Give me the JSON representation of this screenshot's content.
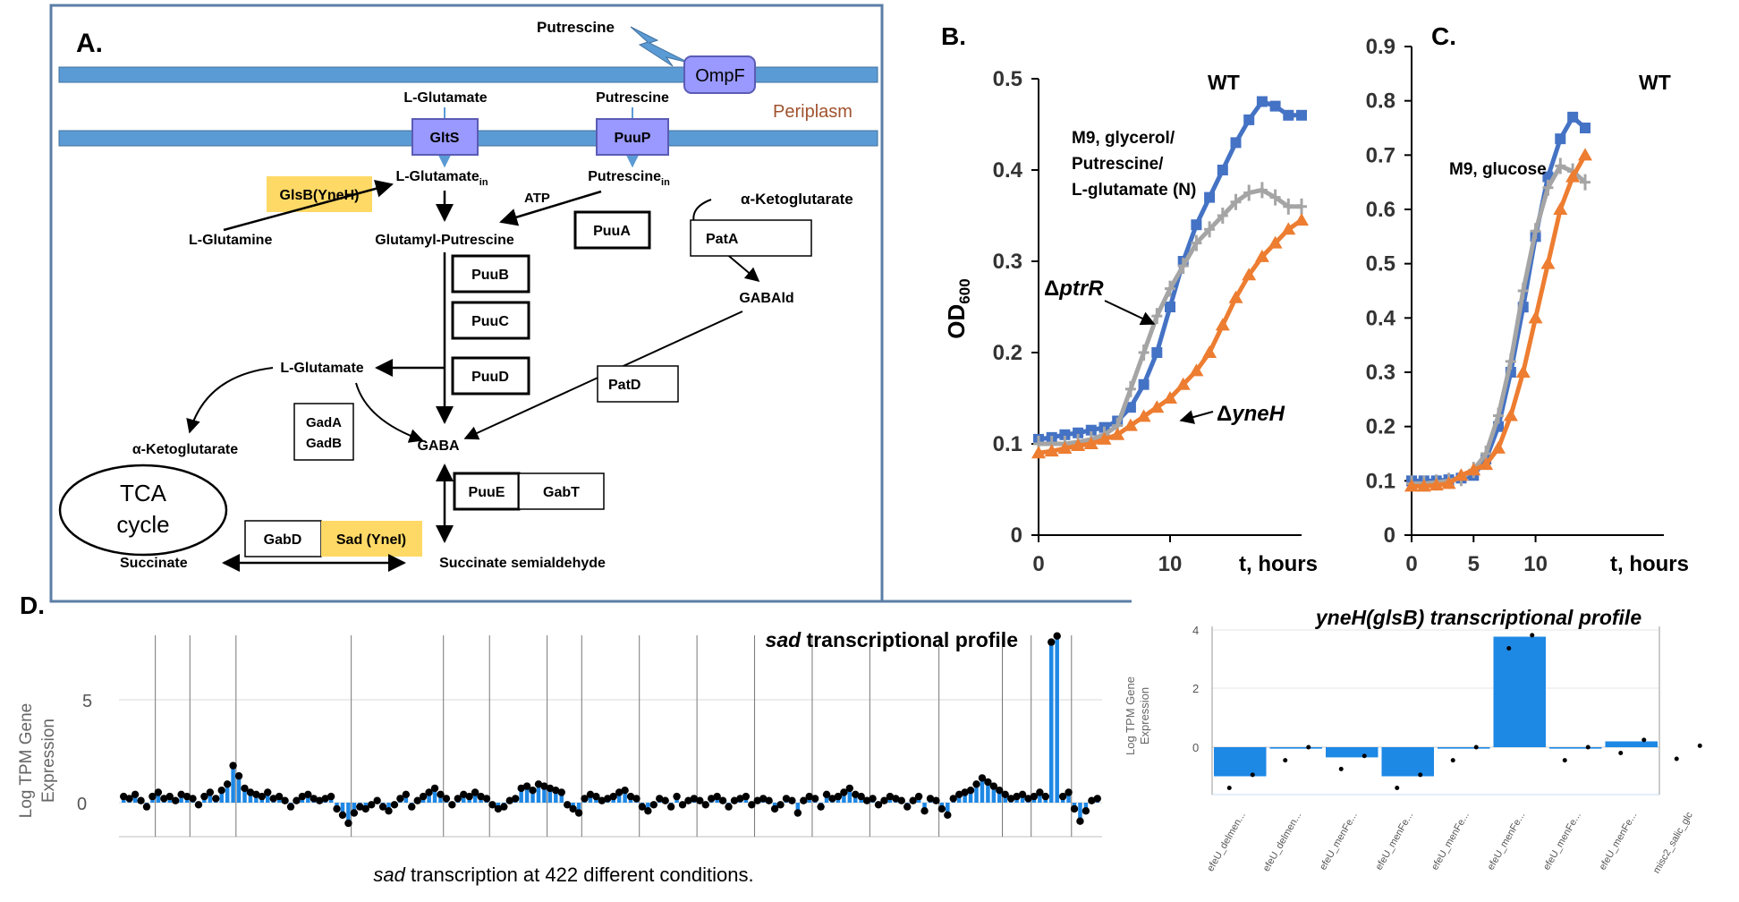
{
  "panel_a": {
    "label": "A.",
    "periplasm": "Periplasm",
    "putrescine_top": "Putrescine",
    "ompf": "OmpF",
    "l_glutamate_top": "L-Glutamate",
    "putrescine_mid": "Putrescine",
    "glts": "GltS",
    "puup": "PuuP",
    "l_glutamate_in": "L-Glutamate",
    "putrescine_in": "Putrescine",
    "in_sub": "in",
    "glsb": "GlsB(YneH)",
    "l_glutamine": "L-Glutamine",
    "atp": "ATP",
    "glutamyl_putrescine": "Glutamyl-Putrescine",
    "akg_right": "α-Ketoglutarate",
    "puua": "PuuA",
    "pata": "PatA",
    "puub": "PuuB",
    "puuc": "PuuC",
    "puud": "PuuD",
    "gabald": "GABAld",
    "l_glutamate_left": "L-Glutamate",
    "patd": "PatD",
    "gada": "GadA",
    "gadb": "GadB",
    "gaba": "GABA",
    "akg_left": "α-Ketoglutarate",
    "tca1": "TCA",
    "tca2": "cycle",
    "puue": "PuuE",
    "gabt": "GabT",
    "gabd": "GabD",
    "sad": "Sad (YneI)",
    "succinate": "Succinate",
    "ssa": "Succinate semialdehyde"
  },
  "panel_b": {
    "label": "B.",
    "ylabel": "OD",
    "ylabel_sub": "600",
    "wt": "WT",
    "cond1": "M9, glycerol/",
    "cond2": "Putrescine/",
    "cond3": "L-glutamate (N)",
    "ptrr": "ptrR",
    "yneh": "yneH",
    "delta": "Δ",
    "xlabel": "t, hours"
  },
  "panel_c": {
    "label": "C.",
    "wt": "WT",
    "cond": "M9, glucose",
    "xlabel": "t, hours"
  },
  "panel_d": {
    "label": "D.",
    "sad_title_gene": "sad",
    "sad_title_rest": " transcriptional profile",
    "ylabel1": "Log TPM Gene",
    "ylabel2": "Expression",
    "caption_gene": "sad",
    "caption_rest": " transcription at 422 different conditions.",
    "yneh_title": "yneH(glsB) transcriptional profile",
    "yneh_ylabel1": "Log TPM Gene",
    "yneh_ylabel2": "Expression"
  },
  "colors": {
    "wt": "#4472c4",
    "ptrr": "#a5a5a5",
    "yneh": "#ed7d31",
    "bar": "#1e88e5",
    "highlight": "#ffd966"
  },
  "chart_data": [
    {
      "id": "B",
      "type": "line",
      "title": "M9, glycerol/Putrescine/L-glutamate (N)",
      "xlabel": "t, hours",
      "ylabel": "OD600",
      "xlim": [
        0,
        20
      ],
      "ylim": [
        0,
        0.5
      ],
      "x_ticks": [
        0,
        10
      ],
      "y_ticks": [
        "0",
        "0.1",
        "0.2",
        "0.3",
        "0.4",
        "0.5"
      ],
      "series": [
        {
          "name": "WT",
          "x": [
            0,
            1,
            2,
            3,
            4,
            5,
            6,
            7,
            8,
            9,
            10,
            11,
            12,
            13,
            14,
            15,
            16,
            17,
            18,
            19,
            20
          ],
          "y": [
            0.105,
            0.107,
            0.11,
            0.112,
            0.115,
            0.118,
            0.125,
            0.14,
            0.165,
            0.2,
            0.25,
            0.3,
            0.34,
            0.37,
            0.4,
            0.43,
            0.455,
            0.475,
            0.47,
            0.46,
            0.46
          ]
        },
        {
          "name": "ΔptrR",
          "x": [
            0,
            1,
            2,
            3,
            4,
            5,
            6,
            7,
            8,
            9,
            10,
            11,
            12,
            13,
            14,
            15,
            16,
            17,
            18,
            19,
            20
          ],
          "y": [
            0.1,
            0.1,
            0.1,
            0.102,
            0.105,
            0.11,
            0.12,
            0.16,
            0.2,
            0.24,
            0.27,
            0.295,
            0.32,
            0.335,
            0.35,
            0.365,
            0.375,
            0.378,
            0.37,
            0.36,
            0.36
          ]
        },
        {
          "name": "ΔyneH",
          "x": [
            0,
            1,
            2,
            3,
            4,
            5,
            6,
            7,
            8,
            9,
            10,
            11,
            12,
            13,
            14,
            15,
            16,
            17,
            18,
            19,
            20
          ],
          "y": [
            0.09,
            0.092,
            0.095,
            0.098,
            0.1,
            0.105,
            0.11,
            0.12,
            0.13,
            0.14,
            0.15,
            0.165,
            0.18,
            0.2,
            0.23,
            0.26,
            0.285,
            0.305,
            0.32,
            0.335,
            0.345
          ]
        }
      ]
    },
    {
      "id": "C",
      "type": "line",
      "title": "M9, glucose",
      "xlabel": "t, hours",
      "ylabel": "",
      "xlim": [
        0,
        14
      ],
      "ylim": [
        0,
        0.9
      ],
      "x_ticks": [
        0,
        5,
        10
      ],
      "y_ticks": [
        "0",
        "0.1",
        "0.2",
        "0.3",
        "0.4",
        "0.5",
        "0.6",
        "0.7",
        "0.8",
        "0.9"
      ],
      "series": [
        {
          "name": "WT",
          "x": [
            0,
            1,
            2,
            3,
            4,
            5,
            6,
            7,
            8,
            9,
            10,
            11,
            12,
            13,
            14
          ],
          "y": [
            0.1,
            0.1,
            0.1,
            0.102,
            0.105,
            0.11,
            0.14,
            0.2,
            0.3,
            0.42,
            0.55,
            0.66,
            0.73,
            0.77,
            0.75
          ]
        },
        {
          "name": "ΔptrR",
          "x": [
            0,
            1,
            2,
            3,
            4,
            5,
            6,
            7,
            8,
            9,
            10,
            11,
            12,
            13,
            14
          ],
          "y": [
            0.095,
            0.095,
            0.097,
            0.1,
            0.105,
            0.12,
            0.15,
            0.22,
            0.32,
            0.45,
            0.56,
            0.64,
            0.68,
            0.67,
            0.65
          ]
        },
        {
          "name": "ΔyneH",
          "x": [
            0,
            1,
            2,
            3,
            4,
            5,
            6,
            7,
            8,
            9,
            10,
            11,
            12,
            13,
            14
          ],
          "y": [
            0.09,
            0.09,
            0.092,
            0.095,
            0.11,
            0.12,
            0.13,
            0.16,
            0.22,
            0.3,
            0.4,
            0.5,
            0.6,
            0.66,
            0.7
          ]
        }
      ]
    },
    {
      "id": "D-sad",
      "type": "bar",
      "title": "sad transcriptional profile",
      "xlabel": "sad transcription at 422 different conditions.",
      "ylabel": "Log TPM Gene Expression",
      "ylim": [
        -1,
        8
      ],
      "y_ticks": [
        "0",
        "5"
      ],
      "values": [
        0.3,
        0.2,
        0.4,
        0.1,
        -0.2,
        0.3,
        0.5,
        0.2,
        0.3,
        0.1,
        0.4,
        0.3,
        0.2,
        -0.1,
        0.3,
        0.5,
        0.2,
        0.6,
        0.9,
        1.8,
        1.3,
        0.7,
        0.5,
        0.4,
        0.3,
        0.5,
        0.2,
        0.3,
        0.1,
        -0.2,
        0.1,
        0.3,
        0.4,
        0.2,
        0.1,
        0.2,
        0.3,
        -0.3,
        -0.6,
        -1.0,
        -0.5,
        -0.2,
        -0.3,
        -0.1,
        0.1,
        -0.2,
        -0.4,
        -0.1,
        0.2,
        0.4,
        -0.2,
        0.1,
        0.3,
        0.5,
        0.7,
        0.4,
        0.2,
        -0.1,
        0.2,
        0.4,
        0.3,
        0.5,
        0.3,
        0.2,
        -0.1,
        -0.3,
        -0.2,
        0.1,
        0.2,
        0.7,
        0.8,
        0.6,
        0.9,
        0.8,
        0.7,
        0.6,
        0.5,
        -0.1,
        -0.3,
        -0.5,
        0.2,
        0.4,
        0.3,
        0.1,
        0.2,
        0.3,
        0.5,
        0.6,
        0.3,
        0.2,
        -0.2,
        -0.4,
        -0.1,
        0.2,
        0.1,
        -0.2,
        0.3,
        -0.1,
        0.1,
        0.2,
        0.1,
        -0.1,
        0.2,
        0.3,
        0.1,
        -0.2,
        0.1,
        0.2,
        0.3,
        -0.1,
        0.1,
        0.2,
        0.1,
        -0.3,
        -0.1,
        0.2,
        0.1,
        -0.5,
        0.1,
        0.3,
        0.2,
        -0.2,
        0.4,
        0.2,
        0.3,
        0.5,
        0.7,
        0.4,
        0.3,
        0.1,
        0.2,
        -0.1,
        0.1,
        0.3,
        0.2,
        0.1,
        -0.2,
        0.1,
        0.3,
        -0.4,
        0.2,
        0.1,
        -0.3,
        -0.6,
        0.2,
        0.4,
        0.5,
        0.6,
        0.9,
        1.2,
        1.0,
        0.8,
        0.6,
        0.4,
        0.2,
        0.3,
        0.4,
        0.2,
        0.3,
        0.5,
        0.3,
        7.8,
        8.1,
        0.3,
        0.5,
        -0.3,
        -0.9,
        -0.4,
        0.1,
        0.2
      ]
    },
    {
      "id": "D-yneH",
      "type": "bar",
      "title": "yneH(glsB) transcriptional profile",
      "ylabel": "Log TPM Gene Expression",
      "ylim": [
        -2,
        4
      ],
      "y_ticks": [
        "4",
        "2",
        "0"
      ],
      "categories": [
        "efeU_delmen...",
        "efeU_delmen...",
        "efeU_menFe...",
        "efeU_menFe...",
        "efeU_menFe...",
        "efeU_menFe...",
        "efeU_menFe...",
        "efeU_menFe...",
        "misc2_salic_glc"
      ],
      "values": [
        -1.0,
        -0.05,
        -0.35,
        -1.0,
        -0.05,
        3.8,
        -0.05,
        0.2,
        0.0
      ]
    }
  ]
}
